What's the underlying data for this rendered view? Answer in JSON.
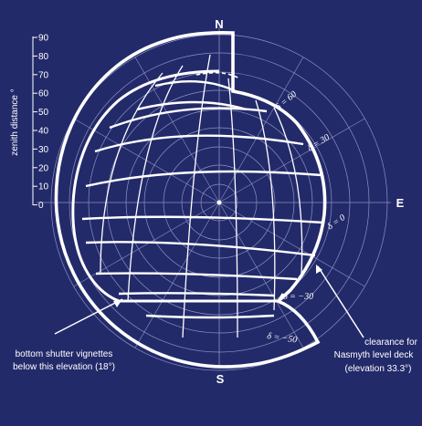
{
  "colors": {
    "background": "#232a6a",
    "foreground": "#ffffff",
    "grid": "#8c92bf"
  },
  "compass": {
    "north": "N",
    "south": "S",
    "east": "E"
  },
  "zenith_scale": {
    "title": "zenith distance °",
    "ticks": [
      "90",
      "80",
      "70",
      "60",
      "50",
      "40",
      "30",
      "20",
      "10",
      "0"
    ]
  },
  "declination_labels": [
    "δ = 60",
    "δ = 30",
    "δ = 0",
    "δ = −30",
    "δ = −50"
  ],
  "annotations": {
    "left_line1": "bottom shutter vignettes",
    "left_line2": "below this elevation (18°)",
    "right_line1": "clearance for",
    "right_line2": "Nasmyth level deck",
    "right_line3": "(elevation 33.3°)"
  }
}
